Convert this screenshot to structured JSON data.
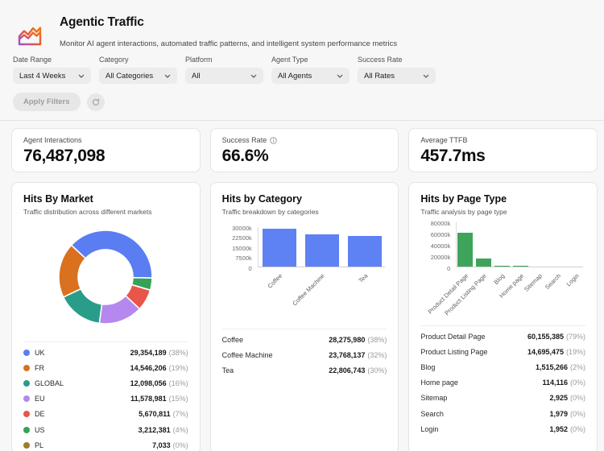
{
  "header": {
    "title": "Agentic Traffic",
    "subtitle": "Monitor AI agent interactions, automated traffic patterns, and intelligent system performance metrics"
  },
  "filters": {
    "apply_label": "Apply Filters",
    "fields": [
      {
        "label": "Date Range",
        "value": "Last 4 Weeks"
      },
      {
        "label": "Category",
        "value": "All Categories"
      },
      {
        "label": "Platform",
        "value": "All"
      },
      {
        "label": "Agent Type",
        "value": "All Agents"
      },
      {
        "label": "Success Rate",
        "value": "All Rates"
      }
    ]
  },
  "kpis": [
    {
      "label": "Agent Interactions",
      "value": "76,487,098",
      "info": false
    },
    {
      "label": "Success Rate",
      "value": "66.6%",
      "info": true
    },
    {
      "label": "Average TTFB",
      "value": "457.7ms",
      "info": false
    }
  ],
  "chart_data": [
    {
      "type": "pie",
      "donut": true,
      "title": "Hits By Market",
      "subtitle": "Traffic distribution across different markets",
      "legend_position": "bottom-list",
      "start_angle": -47,
      "items": [
        {
          "label": "UK",
          "value": 29354189,
          "display": "29,354,189",
          "pct": "(38%)",
          "color": "#5b7df2"
        },
        {
          "label": "FR",
          "value": 14546206,
          "display": "14,546,206",
          "pct": "(19%)",
          "color": "#d9711f"
        },
        {
          "label": "GLOBAL",
          "value": 12098056,
          "display": "12,098,056",
          "pct": "(16%)",
          "color": "#2a9d8a"
        },
        {
          "label": "EU",
          "value": 11578981,
          "display": "11,578,981",
          "pct": "(15%)",
          "color": "#b488ee"
        },
        {
          "label": "DE",
          "value": 5670811,
          "display": "5,670,811",
          "pct": "(7%)",
          "color": "#e95549"
        },
        {
          "label": "US",
          "value": 3212381,
          "display": "3,212,381",
          "pct": "(4%)",
          "color": "#35a258"
        },
        {
          "label": "PL",
          "value": 7033,
          "display": "7,033",
          "pct": "(0%)",
          "color": "#a07c28"
        }
      ]
    },
    {
      "type": "bar",
      "title": "Hits by Category",
      "subtitle": "Traffic breakdown by categories",
      "bar_color": "#5e81f4",
      "ymax": 30000000,
      "y_ticks": [
        "30000k",
        "22500k",
        "15000k",
        "7500k",
        "0"
      ],
      "grid": false,
      "items": [
        {
          "label": "Coffee",
          "value": 28275980,
          "display": "28,275,980",
          "pct": "(38%)"
        },
        {
          "label": "Coffee Machine",
          "value": 23768137,
          "display": "23,768,137",
          "pct": "(32%)"
        },
        {
          "label": "Tea",
          "value": 22806743,
          "display": "22,806,743",
          "pct": "(30%)"
        }
      ]
    },
    {
      "type": "bar",
      "title": "Hits by Page Type",
      "subtitle": "Traffic analysis by page type",
      "bar_color": "#3fa45b",
      "ymax": 80000000,
      "y_ticks": [
        "80000k",
        "60000k",
        "40000k",
        "20000k",
        "0"
      ],
      "grid": false,
      "items": [
        {
          "label": "Product Detail Page",
          "value": 60155385,
          "display": "60,155,385",
          "pct": "(79%)"
        },
        {
          "label": "Product Listing Page",
          "value": 14695475,
          "display": "14,695,475",
          "pct": "(19%)"
        },
        {
          "label": "Blog",
          "value": 1515266,
          "display": "1,515,266",
          "pct": "(2%)"
        },
        {
          "label": "Home page",
          "value": 114116,
          "display": "114,116",
          "pct": "(0%)"
        },
        {
          "label": "Sitemap",
          "value": 2925,
          "display": "2,925",
          "pct": "(0%)"
        },
        {
          "label": "Search",
          "value": 1979,
          "display": "1,979",
          "pct": "(0%)"
        },
        {
          "label": "Login",
          "value": 1952,
          "display": "1,952",
          "pct": "(0%)"
        }
      ]
    }
  ]
}
